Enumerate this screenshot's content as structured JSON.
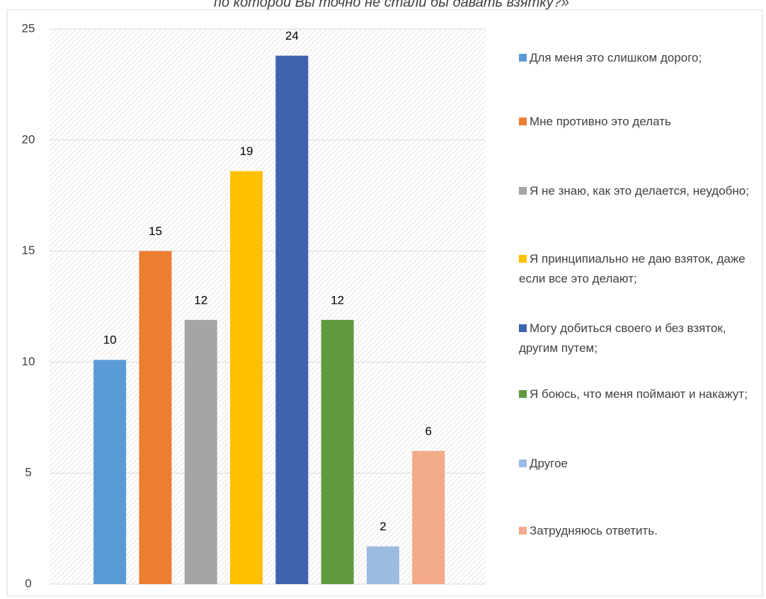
{
  "chart_data": {
    "type": "bar",
    "title": "по которой Вы точно не стали бы давать взятку?»",
    "categories": [
      "Для меня это слишком дорого;",
      "Мне противно это делать",
      "Я не знаю, как это делается, неудобно;",
      "Я принципиально не даю взяток, даже если все это делают;",
      "Могу добиться своего и без взяток, другим путем;",
      "Я боюсь, что меня поймают и накажут;",
      "Другое",
      "Затрудняюсь ответить."
    ],
    "values": [
      10.1,
      15,
      11.9,
      18.6,
      23.8,
      11.9,
      1.7,
      6
    ],
    "value_labels": [
      "10",
      "15",
      "12",
      "19",
      "24",
      "12",
      "2",
      "6"
    ],
    "colors": [
      "#5b9bd5",
      "#ed7d31",
      "#a5a5a5",
      "#ffc000",
      "#3f63ad",
      "#5f9a41",
      "#9dbbe0",
      "#f2aa8a"
    ],
    "ylim": [
      0,
      25
    ],
    "yticks": [
      0,
      5,
      10,
      15,
      20,
      25
    ],
    "grid": true,
    "legend": "right"
  }
}
